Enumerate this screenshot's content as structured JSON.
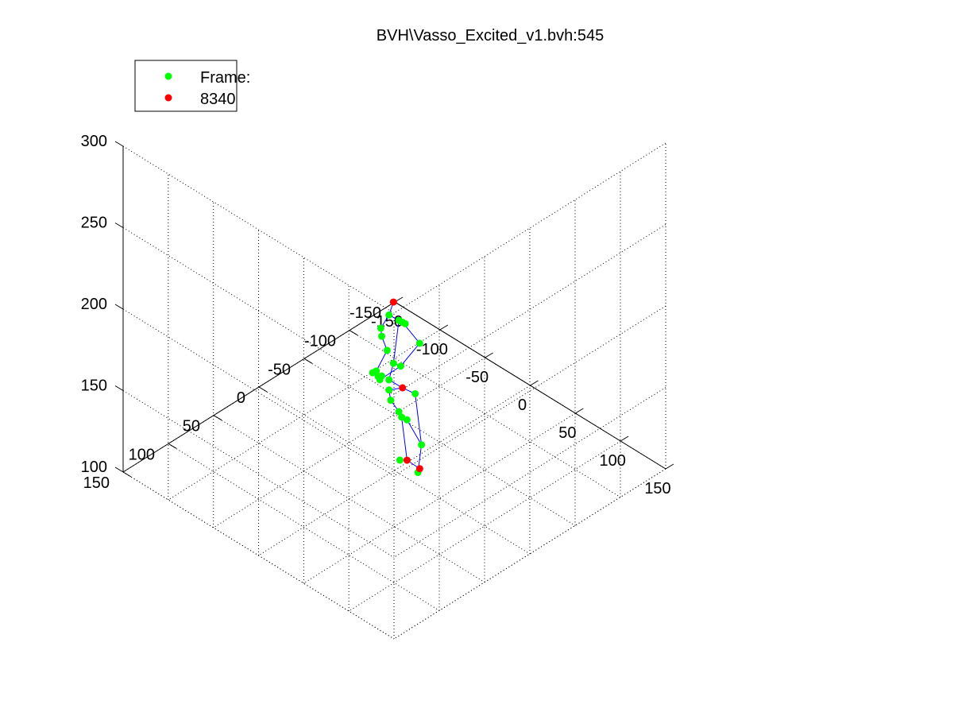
{
  "chart_data": {
    "type": "scatter3d",
    "title": "BVH\\Vasso_Excited_v1.bvh:545",
    "legend": {
      "placement": "top-left",
      "entries": [
        {
          "label": "Frame:",
          "color": "#00ff00"
        },
        {
          "label": "8340",
          "color": "#ff0000"
        }
      ]
    },
    "x_ticks": [
      "-150",
      "-100",
      "-50",
      "0",
      "50",
      "100",
      "150"
    ],
    "y_ticks": [
      "-150",
      "-100",
      "-50",
      "0",
      "50",
      "100",
      "150"
    ],
    "z_ticks": [
      "100",
      "150",
      "200",
      "250",
      "300"
    ],
    "xlim": [
      -150,
      150
    ],
    "ylim": [
      -150,
      150
    ],
    "zlim": [
      100,
      300
    ],
    "grid": true,
    "series": [
      {
        "marker_color": "#00ff00",
        "line_color": "#0000ff",
        "points": [
          {
            "x": 8,
            "y": 14,
            "z": 203
          },
          {
            "x": 14,
            "y": 9,
            "z": 200
          },
          {
            "x": 19,
            "y": 7,
            "z": 199
          },
          {
            "x": 22,
            "y": 13,
            "z": 203
          },
          {
            "x": 5,
            "y": 20,
            "z": 196
          },
          {
            "x": 4,
            "y": 18,
            "z": 190
          },
          {
            "x": 30,
            "y": 2,
            "z": 189
          },
          {
            "x": 8,
            "y": 16,
            "z": 182
          },
          {
            "x": 10,
            "y": 11,
            "z": 173
          },
          {
            "x": 18,
            "y": 11,
            "z": 174
          },
          {
            "x": 0,
            "y": 20,
            "z": 168
          },
          {
            "x": -2,
            "y": 22,
            "z": 167
          },
          {
            "x": 3,
            "y": 21,
            "z": 166
          },
          {
            "x": 6,
            "y": 20,
            "z": 167
          },
          {
            "x": 12,
            "y": 18,
            "z": 166
          },
          {
            "x": 4,
            "y": 20,
            "z": 164
          },
          {
            "x": 8,
            "y": 14,
            "z": 157
          },
          {
            "x": 26,
            "y": 3,
            "z": 157
          },
          {
            "x": 8,
            "y": 12,
            "z": 150
          },
          {
            "x": 14,
            "y": 9,
            "z": 144
          },
          {
            "x": 16,
            "y": 8,
            "z": 141
          },
          {
            "x": 20,
            "y": 6,
            "z": 140
          },
          {
            "x": 30,
            "y": 0,
            "z": 126
          },
          {
            "x": 4,
            "y": -2,
            "z": 107
          },
          {
            "x": 12,
            "y": -14,
            "z": 98
          }
        ]
      },
      {
        "marker_color": "#ff0000",
        "points": [
          {
            "x": 12,
            "y": 13,
            "z": 212
          },
          {
            "x": 18,
            "y": 9,
            "z": 160
          },
          {
            "x": 11,
            "y": -3,
            "z": 109
          },
          {
            "x": 14,
            "y": -14,
            "z": 101
          }
        ]
      }
    ]
  }
}
